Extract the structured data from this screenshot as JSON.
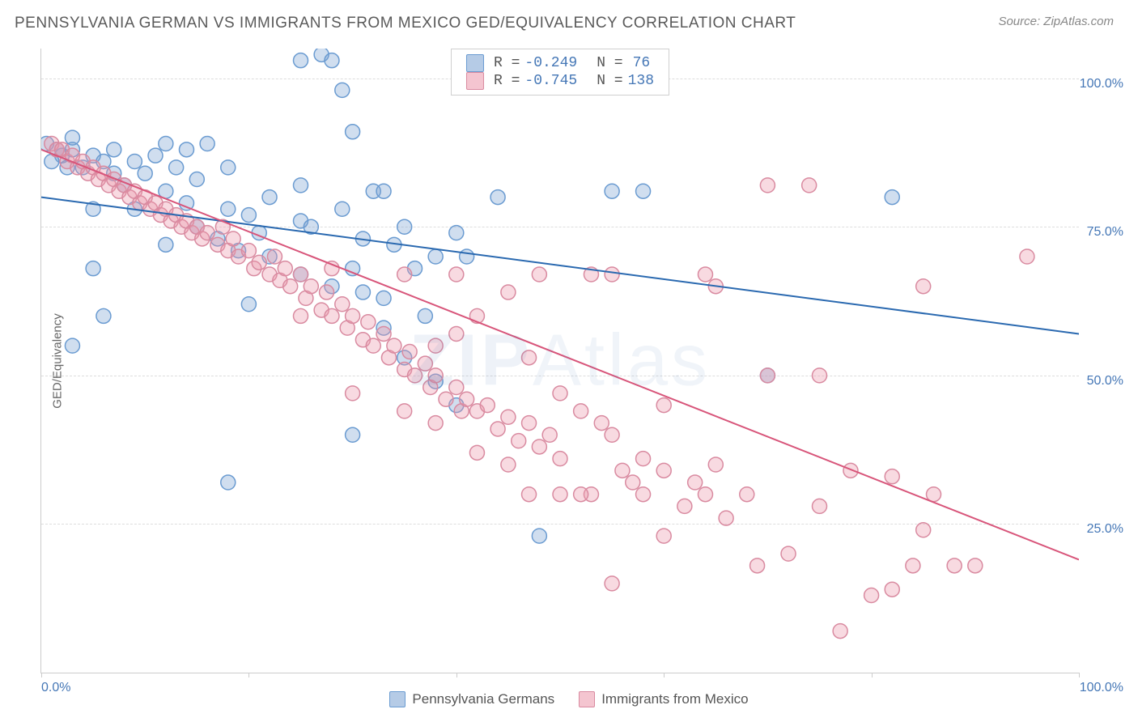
{
  "header": {
    "title": "PENNSYLVANIA GERMAN VS IMMIGRANTS FROM MEXICO GED/EQUIVALENCY CORRELATION CHART",
    "source": "Source: ZipAtlas.com"
  },
  "chart": {
    "type": "scatter",
    "ylabel": "GED/Equivalency",
    "xlim": [
      0,
      100
    ],
    "ylim": [
      0,
      105
    ],
    "xticks": [
      0,
      20,
      40,
      60,
      80,
      100
    ],
    "ygrid": [
      25,
      50,
      75,
      100
    ],
    "xtick_labels": {
      "min": "0.0%",
      "max": "100.0%"
    },
    "ytick_labels": [
      "25.0%",
      "50.0%",
      "75.0%",
      "100.0%"
    ],
    "tick_color": "#4577b6",
    "grid_color": "#dddddd",
    "background": "#ffffff",
    "marker_radius": 9,
    "marker_stroke_width": 1.5,
    "line_width": 2,
    "series": [
      {
        "name": "Pennsylvania Germans",
        "fill": "rgba(120,160,210,0.35)",
        "stroke": "#6a9bd1",
        "line_color": "#2a69b0",
        "legend_fill": "rgba(120,160,210,0.55)",
        "R": "-0.249",
        "N": "76",
        "trend": {
          "x1": 0,
          "y1": 80,
          "x2": 100,
          "y2": 57
        },
        "points": [
          [
            2,
            87
          ],
          [
            3,
            88
          ],
          [
            1,
            86
          ],
          [
            4,
            85
          ],
          [
            5,
            87
          ],
          [
            3,
            90
          ],
          [
            6,
            86
          ],
          [
            7,
            84
          ],
          [
            7,
            88
          ],
          [
            8,
            82
          ],
          [
            9,
            86
          ],
          [
            9,
            78
          ],
          [
            10,
            84
          ],
          [
            11,
            87
          ],
          [
            12,
            81
          ],
          [
            13,
            85
          ],
          [
            12,
            72
          ],
          [
            14,
            79
          ],
          [
            15,
            83
          ],
          [
            15,
            75
          ],
          [
            16,
            89
          ],
          [
            17,
            73
          ],
          [
            18,
            78
          ],
          [
            18,
            85
          ],
          [
            19,
            71
          ],
          [
            20,
            77
          ],
          [
            20,
            62
          ],
          [
            21,
            74
          ],
          [
            22,
            80
          ],
          [
            25,
            82
          ],
          [
            25,
            76
          ],
          [
            26,
            75
          ],
          [
            27,
            104
          ],
          [
            28,
            103
          ],
          [
            28,
            65
          ],
          [
            29,
            78
          ],
          [
            30,
            68
          ],
          [
            31,
            73
          ],
          [
            32,
            81
          ],
          [
            33,
            63
          ],
          [
            34,
            72
          ],
          [
            35,
            75
          ],
          [
            36,
            68
          ],
          [
            37,
            60
          ],
          [
            38,
            70
          ],
          [
            29,
            98
          ],
          [
            30,
            91
          ],
          [
            35,
            53
          ],
          [
            40,
            74
          ],
          [
            38,
            49
          ],
          [
            30,
            40
          ],
          [
            25,
            67
          ],
          [
            22,
            70
          ],
          [
            31,
            64
          ],
          [
            33,
            58
          ],
          [
            5,
            68
          ],
          [
            5,
            78
          ],
          [
            18,
            32
          ],
          [
            3,
            55
          ],
          [
            40,
            45
          ],
          [
            48,
            23
          ],
          [
            55,
            81
          ],
          [
            57,
            104
          ],
          [
            58,
            81
          ],
          [
            44,
            80
          ],
          [
            41,
            70
          ],
          [
            12,
            89
          ],
          [
            14,
            88
          ],
          [
            6,
            60
          ],
          [
            70,
            50
          ],
          [
            82,
            80
          ],
          [
            0.5,
            89
          ],
          [
            1.5,
            88
          ],
          [
            2.5,
            85
          ],
          [
            25,
            103
          ],
          [
            33,
            81
          ]
        ]
      },
      {
        "name": "Immigrants from Mexico",
        "fill": "rgba(235,150,170,0.35)",
        "stroke": "#d98aa0",
        "line_color": "#d8557a",
        "legend_fill": "rgba(235,150,170,0.55)",
        "R": "-0.745",
        "N": "138",
        "trend": {
          "x1": 0,
          "y1": 88,
          "x2": 100,
          "y2": 19
        },
        "points": [
          [
            1,
            89
          ],
          [
            1.5,
            88
          ],
          [
            2,
            88
          ],
          [
            2.5,
            86
          ],
          [
            3,
            87
          ],
          [
            3.5,
            85
          ],
          [
            4,
            86
          ],
          [
            4.5,
            84
          ],
          [
            5,
            85
          ],
          [
            5.5,
            83
          ],
          [
            6,
            84
          ],
          [
            6.5,
            82
          ],
          [
            7,
            83
          ],
          [
            7.5,
            81
          ],
          [
            8,
            82
          ],
          [
            8.5,
            80
          ],
          [
            9,
            81
          ],
          [
            9.5,
            79
          ],
          [
            10,
            80
          ],
          [
            10.5,
            78
          ],
          [
            11,
            79
          ],
          [
            11.5,
            77
          ],
          [
            12,
            78
          ],
          [
            12.5,
            76
          ],
          [
            13,
            77
          ],
          [
            13.5,
            75
          ],
          [
            14,
            76
          ],
          [
            14.5,
            74
          ],
          [
            15,
            75
          ],
          [
            15.5,
            73
          ],
          [
            16,
            74
          ],
          [
            17,
            72
          ],
          [
            17.5,
            75
          ],
          [
            18,
            71
          ],
          [
            18.5,
            73
          ],
          [
            19,
            70
          ],
          [
            20,
            71
          ],
          [
            20.5,
            68
          ],
          [
            21,
            69
          ],
          [
            22,
            67
          ],
          [
            22.5,
            70
          ],
          [
            23,
            66
          ],
          [
            23.5,
            68
          ],
          [
            24,
            65
          ],
          [
            25,
            67
          ],
          [
            25.5,
            63
          ],
          [
            26,
            65
          ],
          [
            27,
            61
          ],
          [
            27.5,
            64
          ],
          [
            28,
            60
          ],
          [
            29,
            62
          ],
          [
            29.5,
            58
          ],
          [
            30,
            60
          ],
          [
            31,
            56
          ],
          [
            31.5,
            59
          ],
          [
            32,
            55
          ],
          [
            33,
            57
          ],
          [
            33.5,
            53
          ],
          [
            34,
            55
          ],
          [
            35,
            51
          ],
          [
            35.5,
            54
          ],
          [
            36,
            50
          ],
          [
            37,
            52
          ],
          [
            37.5,
            48
          ],
          [
            38,
            50
          ],
          [
            39,
            46
          ],
          [
            40,
            48
          ],
          [
            40.5,
            44
          ],
          [
            41,
            46
          ],
          [
            42,
            44
          ],
          [
            43,
            45
          ],
          [
            44,
            41
          ],
          [
            45,
            43
          ],
          [
            46,
            39
          ],
          [
            47,
            42
          ],
          [
            48,
            38
          ],
          [
            49,
            40
          ],
          [
            50,
            36
          ],
          [
            50,
            47
          ],
          [
            52,
            44
          ],
          [
            53,
            30
          ],
          [
            54,
            42
          ],
          [
            55,
            40
          ],
          [
            56,
            34
          ],
          [
            57,
            32
          ],
          [
            58,
            36
          ],
          [
            60,
            34
          ],
          [
            60,
            45
          ],
          [
            62,
            28
          ],
          [
            63,
            32
          ],
          [
            64,
            30
          ],
          [
            65,
            35
          ],
          [
            66,
            26
          ],
          [
            68,
            30
          ],
          [
            70,
            50
          ],
          [
            70,
            82
          ],
          [
            72,
            20
          ],
          [
            75,
            28
          ],
          [
            55,
            67
          ],
          [
            48,
            67
          ],
          [
            53,
            67
          ],
          [
            64,
            67
          ],
          [
            35,
            44
          ],
          [
            30,
            47
          ],
          [
            38,
            42
          ],
          [
            25,
            60
          ],
          [
            78,
            34
          ],
          [
            80,
            13
          ],
          [
            82,
            33
          ],
          [
            84,
            18
          ],
          [
            85,
            24
          ],
          [
            86,
            30
          ],
          [
            88,
            18
          ],
          [
            90,
            18
          ],
          [
            75,
            50
          ],
          [
            55,
            15
          ],
          [
            45,
            64
          ],
          [
            42,
            60
          ],
          [
            40,
            57
          ],
          [
            38,
            55
          ],
          [
            58,
            30
          ],
          [
            52,
            30
          ],
          [
            47,
            30
          ],
          [
            60,
            23
          ],
          [
            42,
            37
          ],
          [
            45,
            35
          ],
          [
            50,
            30
          ],
          [
            47,
            53
          ],
          [
            77,
            7
          ],
          [
            82,
            14
          ],
          [
            69,
            18
          ],
          [
            40,
            67
          ],
          [
            35,
            67
          ],
          [
            28,
            68
          ],
          [
            85,
            65
          ],
          [
            65,
            65
          ],
          [
            74,
            82
          ],
          [
            95,
            70
          ]
        ]
      }
    ],
    "watermark": {
      "bold": "ZIP",
      "thin": "Atlas"
    }
  },
  "legend_labels": {
    "r_prefix": "R = ",
    "n_prefix": "N = "
  }
}
